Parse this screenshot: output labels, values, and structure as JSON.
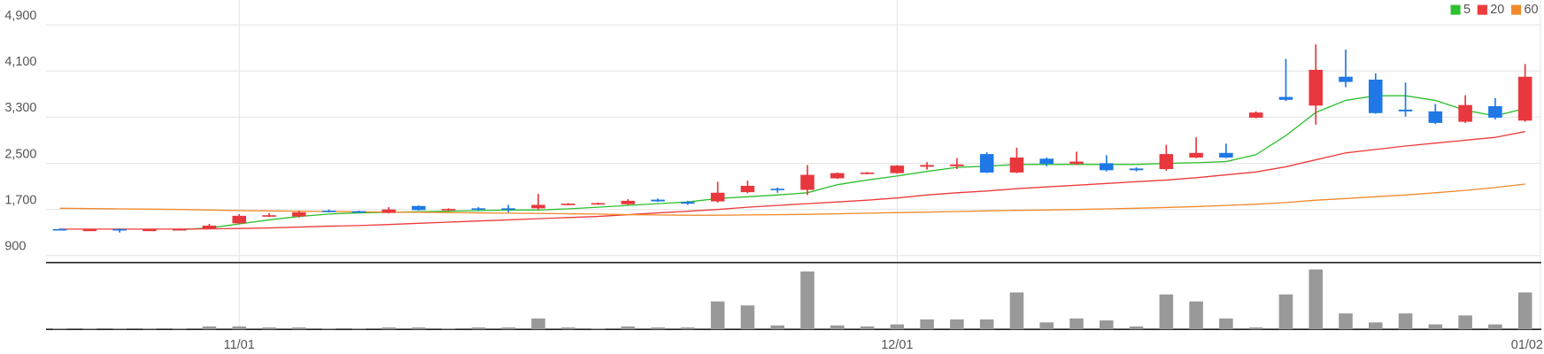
{
  "chart_data": {
    "type": "candlestick",
    "categories": [
      null,
      null,
      null,
      null,
      null,
      null,
      "11/01",
      null,
      null,
      null,
      null,
      null,
      null,
      null,
      null,
      null,
      null,
      null,
      null,
      null,
      null,
      null,
      null,
      null,
      null,
      null,
      null,
      null,
      "12/01",
      null,
      null,
      null,
      null,
      null,
      null,
      null,
      null,
      null,
      null,
      null,
      null,
      null,
      null,
      null,
      null,
      null,
      null,
      null,
      null,
      "01/02"
    ],
    "open": [
      1360,
      1340,
      1360,
      1340,
      1350,
      1370,
      1460,
      1580,
      1580,
      1680,
      1670,
      1640,
      1760,
      1690,
      1720,
      1720,
      1720,
      1780,
      1790,
      1790,
      1870,
      1830,
      1840,
      2000,
      2060,
      2040,
      2240,
      2320,
      2330,
      2440,
      2450,
      2660,
      2340,
      2580,
      2490,
      2500,
      2410,
      2400,
      2600,
      2680,
      3290,
      3650,
      3500,
      4000,
      3950,
      3430,
      3400,
      3220,
      3490,
      3240
    ],
    "close": [
      1350,
      1350,
      1350,
      1350,
      1360,
      1420,
      1590,
      1600,
      1650,
      1660,
      1660,
      1700,
      1690,
      1710,
      1700,
      1700,
      1780,
      1800,
      1810,
      1850,
      1840,
      1800,
      1990,
      2110,
      2040,
      2300,
      2330,
      2340,
      2460,
      2470,
      2480,
      2340,
      2600,
      2490,
      2530,
      2380,
      2380,
      2660,
      2680,
      2600,
      3380,
      3600,
      4120,
      3910,
      3370,
      3400,
      3200,
      3510,
      3290,
      4000
    ],
    "high": [
      1370,
      1360,
      1370,
      1360,
      1370,
      1450,
      1620,
      1640,
      1680,
      1700,
      1680,
      1740,
      1770,
      1720,
      1740,
      1780,
      1970,
      1810,
      1820,
      1880,
      1890,
      1850,
      2180,
      2200,
      2080,
      2470,
      2340,
      2350,
      2470,
      2520,
      2590,
      2690,
      2770,
      2600,
      2700,
      2640,
      2430,
      2820,
      2950,
      2840,
      3400,
      4310,
      4560,
      4470,
      4060,
      3900,
      3530,
      3680,
      3630,
      4220
    ],
    "low": [
      1345,
      1330,
      1300,
      1330,
      1340,
      1360,
      1450,
      1570,
      1560,
      1650,
      1650,
      1630,
      1680,
      1680,
      1680,
      1650,
      1700,
      1770,
      1780,
      1780,
      1830,
      1780,
      1820,
      1980,
      1990,
      1950,
      2230,
      2310,
      2320,
      2390,
      2400,
      2330,
      2330,
      2450,
      2470,
      2360,
      2360,
      2370,
      2590,
      2590,
      3280,
      3580,
      3170,
      3820,
      3360,
      3310,
      3180,
      3200,
      3260,
      3220
    ],
    "up_color": "#e8383d",
    "down_color": "#1f78e6",
    "volume": [
      1,
      1,
      1,
      1,
      1,
      3,
      3,
      2,
      2,
      1,
      1,
      2,
      2,
      1,
      2,
      2,
      11,
      2,
      1,
      3,
      2,
      2,
      28,
      24,
      4,
      58,
      4,
      3,
      5,
      10,
      10,
      10,
      37,
      7,
      11,
      9,
      3,
      35,
      28,
      11,
      2,
      35,
      60,
      16,
      7,
      16,
      5,
      14,
      5,
      37
    ],
    "volume_color": "#999999",
    "series": [
      {
        "name": "5",
        "color": "#2ec02e",
        "values": [
          null,
          null,
          null,
          null,
          1350,
          1380,
          1450,
          1520,
          1580,
          1620,
          1640,
          1650,
          1660,
          1670,
          1680,
          1690,
          1690,
          1710,
          1740,
          1770,
          1800,
          1830,
          1890,
          1920,
          1950,
          1990,
          2130,
          2210,
          2280,
          2360,
          2430,
          2450,
          2480,
          2480,
          2480,
          2480,
          2480,
          2500,
          2510,
          2530,
          2650,
          2980,
          3380,
          3590,
          3670,
          3670,
          3590,
          3420,
          3320,
          3450
        ]
      },
      {
        "name": "20",
        "color": "#ee3b3b",
        "values": [
          1360,
          1360,
          1360,
          1360,
          1360,
          1365,
          1370,
          1380,
          1395,
          1410,
          1420,
          1440,
          1460,
          1480,
          1500,
          1520,
          1540,
          1560,
          1580,
          1610,
          1640,
          1670,
          1700,
          1740,
          1770,
          1800,
          1830,
          1860,
          1900,
          1950,
          1990,
          2020,
          2060,
          2090,
          2120,
          2150,
          2180,
          2210,
          2250,
          2300,
          2350,
          2440,
          2560,
          2680,
          2740,
          2800,
          2850,
          2900,
          2950,
          3050
        ]
      },
      {
        "name": "60",
        "color": "#f08a2c",
        "values": [
          1720,
          1715,
          1710,
          1705,
          1700,
          1690,
          1680,
          1675,
          1670,
          1665,
          1660,
          1655,
          1650,
          1645,
          1640,
          1635,
          1630,
          1625,
          1620,
          1610,
          1605,
          1600,
          1600,
          1605,
          1610,
          1615,
          1625,
          1635,
          1645,
          1655,
          1665,
          1675,
          1685,
          1690,
          1700,
          1710,
          1720,
          1735,
          1750,
          1770,
          1790,
          1820,
          1860,
          1890,
          1920,
          1950,
          1990,
          2030,
          2080,
          2140
        ]
      }
    ],
    "ylim": [
      780,
      5330
    ],
    "yticks": [
      {
        "value": 900,
        "label": "900"
      },
      {
        "value": 1700,
        "label": "1,700"
      },
      {
        "value": 2500,
        "label": "2,500"
      },
      {
        "value": 3300,
        "label": "3,300"
      },
      {
        "value": 4100,
        "label": "4,100"
      },
      {
        "value": 4900,
        "label": "4,900"
      }
    ],
    "grid": true,
    "legend": "top-right"
  }
}
